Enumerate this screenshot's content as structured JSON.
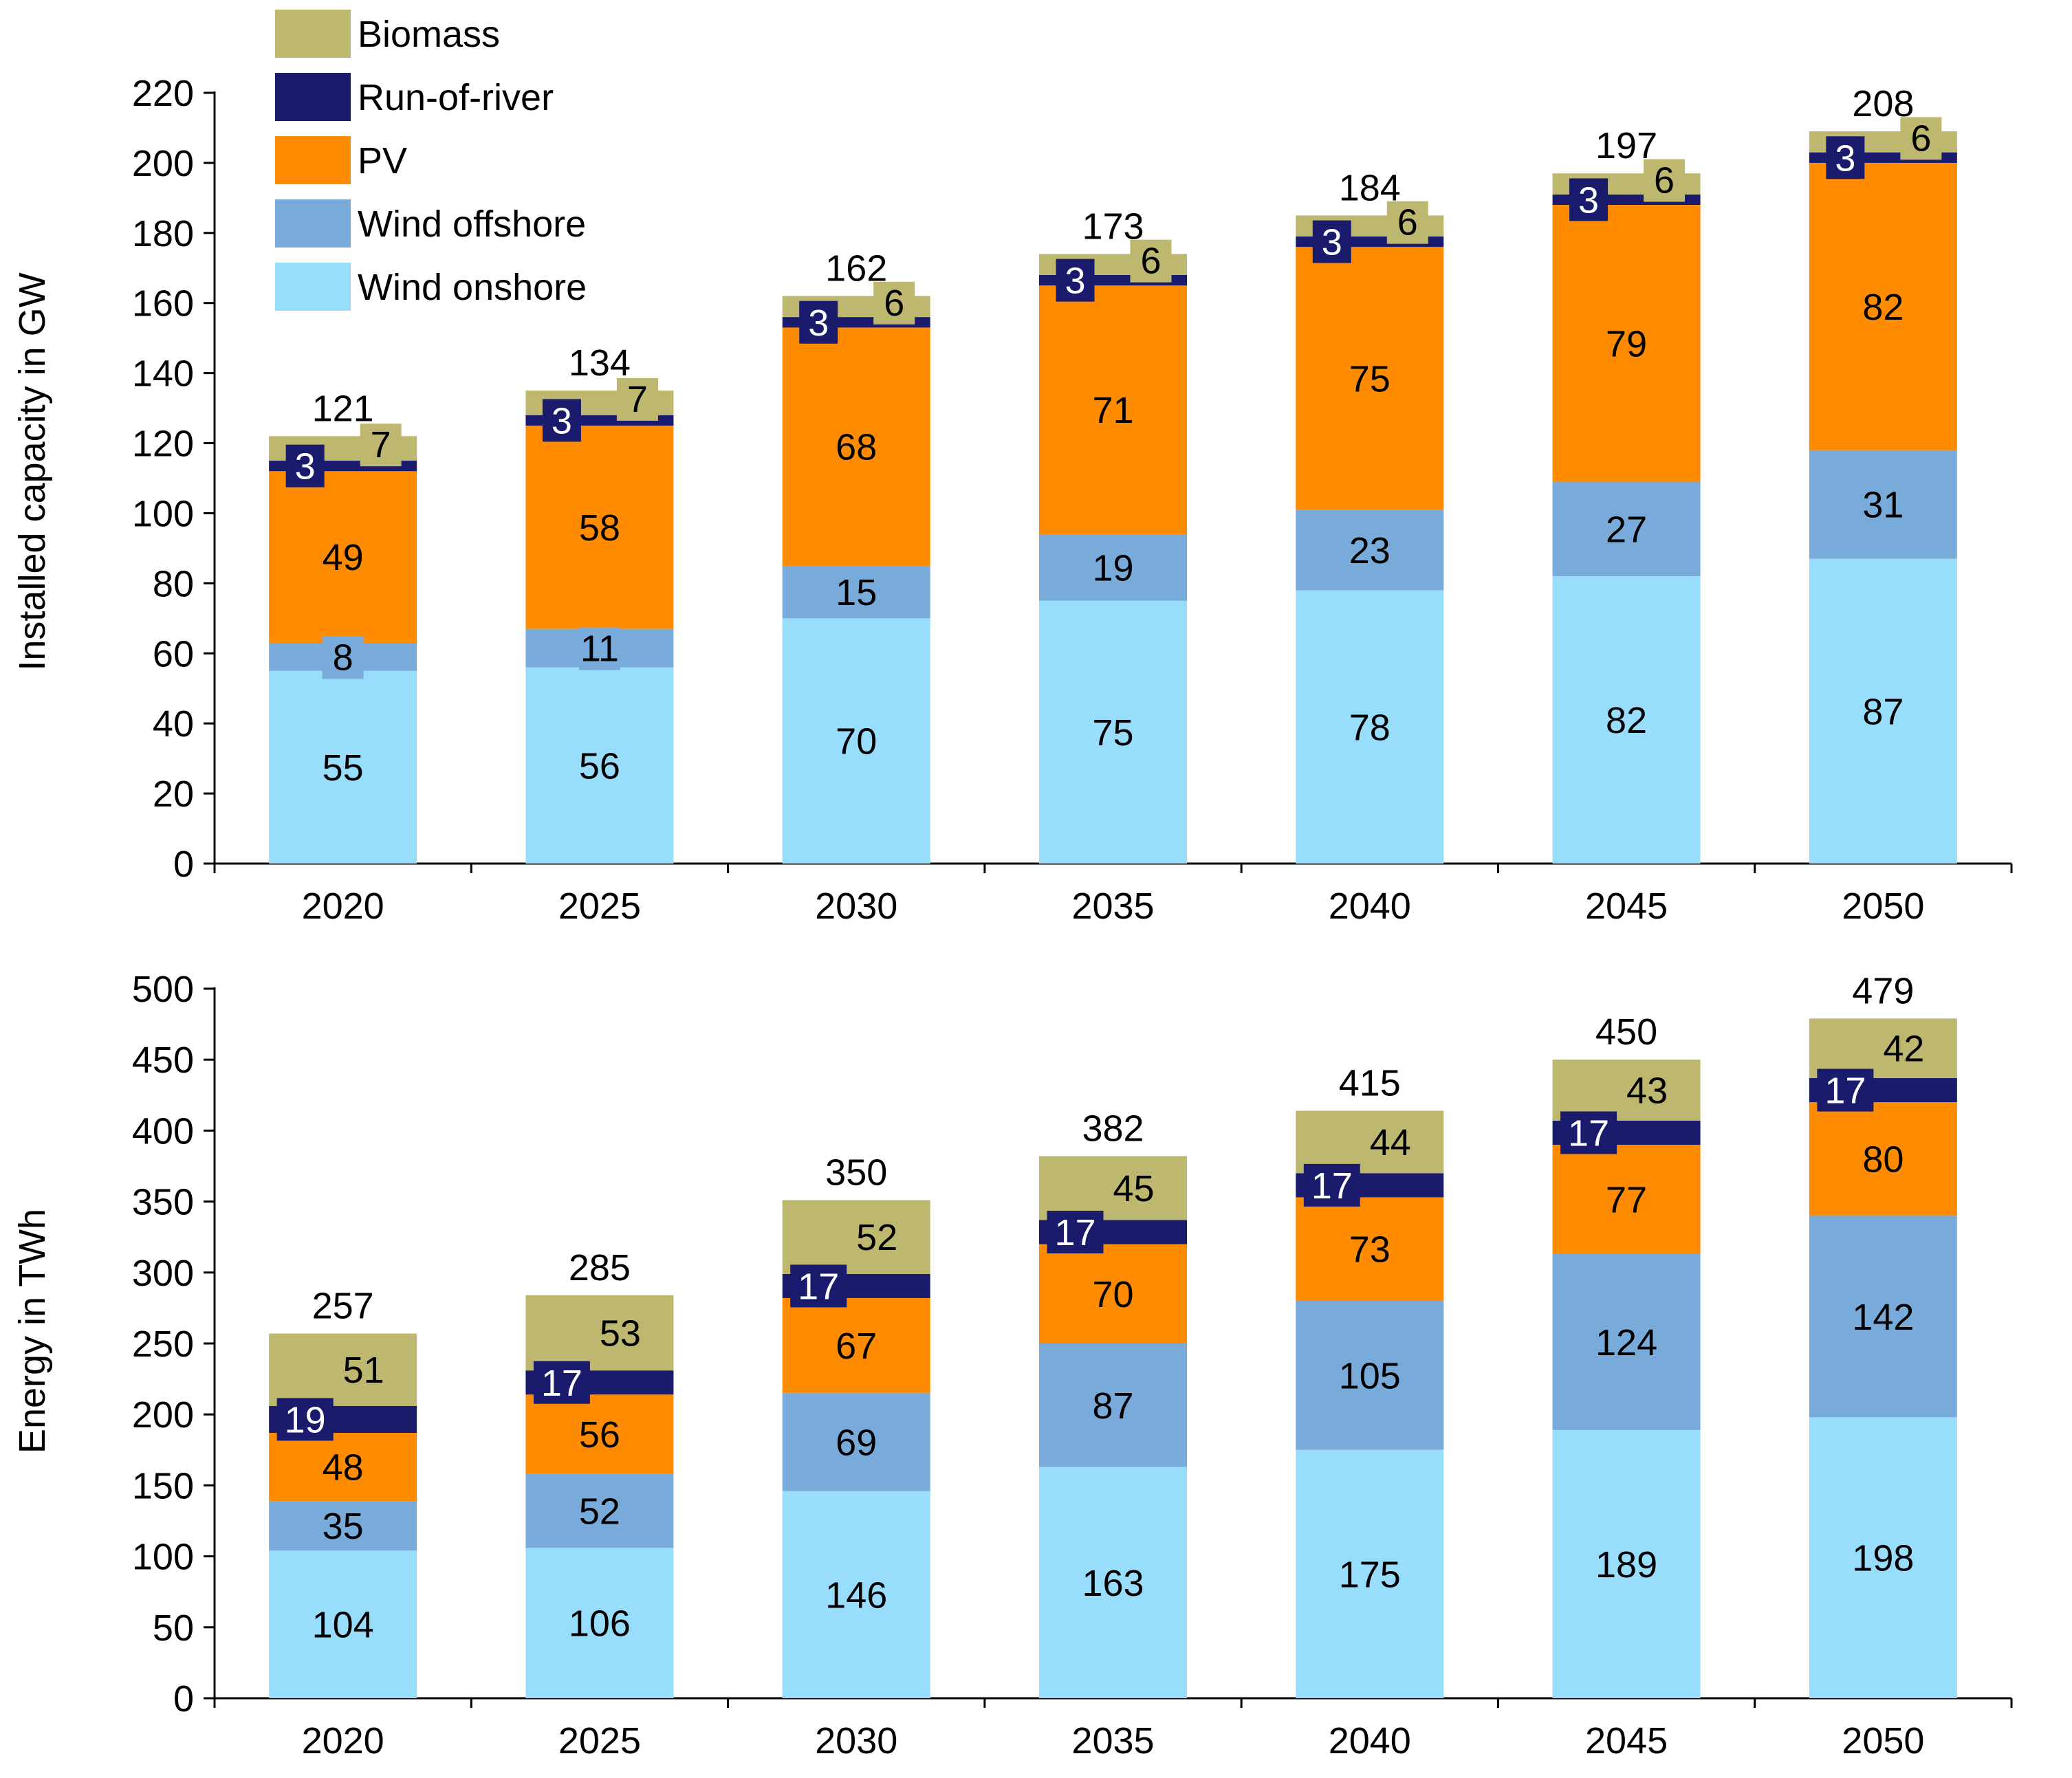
{
  "colors": {
    "Wind onshore": "#99DDFC",
    "Wind offshore": "#78AADA",
    "PV": "#FF8B00",
    "Run-of-river": "#1B1B6E",
    "Biomass": "#BDB76F",
    "axis": "#000000",
    "text": "#000000",
    "badge_text": "#FFFFFF"
  },
  "legend": {
    "items": [
      "Biomass",
      "Run-of-river",
      "PV",
      "Wind offshore",
      "Wind onshore"
    ]
  },
  "chart_data": [
    {
      "type": "bar",
      "stacked": true,
      "title": "",
      "xlabel": "",
      "ylabel": "Installed capacity in GW",
      "ylim": [
        0,
        220
      ],
      "yticks": [
        0,
        20,
        40,
        60,
        80,
        100,
        120,
        140,
        160,
        180,
        200,
        220
      ],
      "categories": [
        "2020",
        "2025",
        "2030",
        "2035",
        "2040",
        "2045",
        "2050"
      ],
      "series": [
        {
          "name": "Wind onshore",
          "values": [
            55,
            56,
            70,
            75,
            78,
            82,
            87
          ]
        },
        {
          "name": "Wind offshore",
          "values": [
            8,
            11,
            15,
            19,
            23,
            27,
            31
          ]
        },
        {
          "name": "PV",
          "values": [
            49,
            58,
            68,
            71,
            75,
            79,
            82
          ]
        },
        {
          "name": "Run-of-river",
          "values": [
            3,
            3,
            3,
            3,
            3,
            3,
            3
          ]
        },
        {
          "name": "Biomass",
          "values": [
            7,
            7,
            6,
            6,
            6,
            6,
            6
          ]
        }
      ],
      "totals": [
        121,
        134,
        162,
        173,
        184,
        197,
        208
      ]
    },
    {
      "type": "bar",
      "stacked": true,
      "title": "",
      "xlabel": "",
      "ylabel": "Energy in TWh",
      "ylim": [
        0,
        500
      ],
      "yticks": [
        0,
        50,
        100,
        150,
        200,
        250,
        300,
        350,
        400,
        450,
        500
      ],
      "categories": [
        "2020",
        "2025",
        "2030",
        "2035",
        "2040",
        "2045",
        "2050"
      ],
      "series": [
        {
          "name": "Wind onshore",
          "values": [
            104,
            106,
            146,
            163,
            175,
            189,
            198
          ]
        },
        {
          "name": "Wind offshore",
          "values": [
            35,
            52,
            69,
            87,
            105,
            124,
            142
          ]
        },
        {
          "name": "PV",
          "values": [
            48,
            56,
            67,
            70,
            73,
            77,
            80
          ]
        },
        {
          "name": "Run-of-river",
          "values": [
            19,
            17,
            17,
            17,
            17,
            17,
            17
          ]
        },
        {
          "name": "Biomass",
          "values": [
            51,
            53,
            52,
            45,
            44,
            43,
            42
          ]
        }
      ],
      "totals": [
        257,
        285,
        350,
        382,
        415,
        450,
        479
      ]
    }
  ]
}
